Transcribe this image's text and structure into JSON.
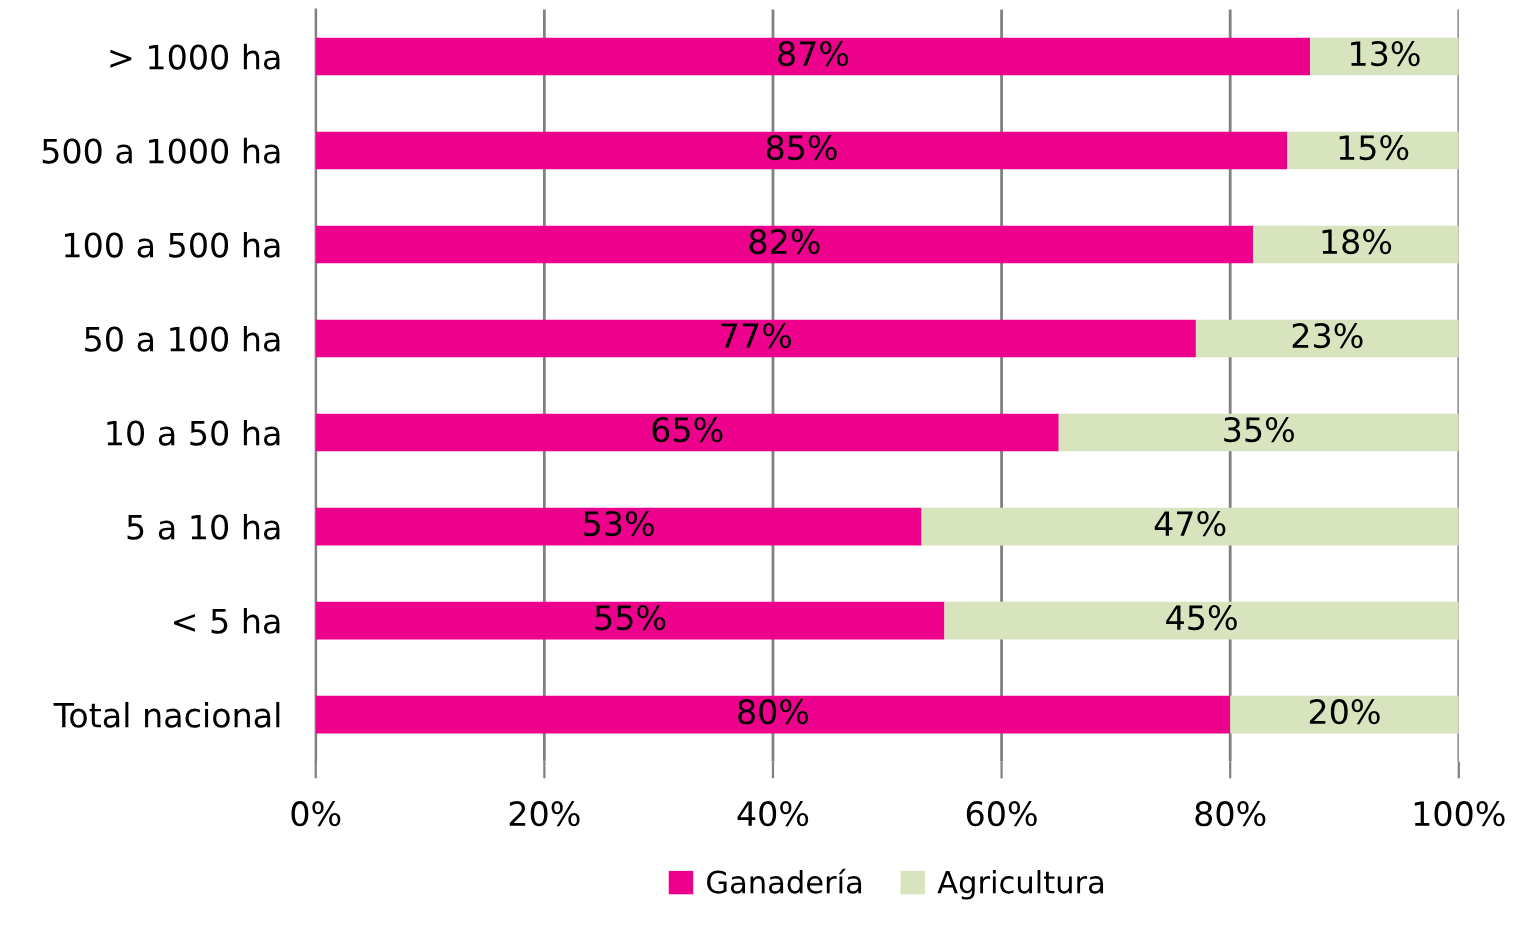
{
  "chart_data": {
    "type": "bar",
    "orientation": "horizontal",
    "stacked": true,
    "categories": [
      "> 1000 ha",
      "500 a 1000 ha",
      "100 a 500 ha",
      "50 a 100 ha",
      "10 a 50 ha",
      "5 a 10 ha",
      "< 5 ha",
      "Total nacional"
    ],
    "series": [
      {
        "name": "Ganadería",
        "color": "#ec008c",
        "values": [
          87,
          85,
          82,
          77,
          65,
          53,
          55,
          80
        ],
        "value_labels": [
          "87%",
          "85%",
          "82%",
          "77%",
          "65%",
          "53%",
          "55%",
          "80%"
        ]
      },
      {
        "name": "Agricultura",
        "color": "#d7e4bd",
        "values": [
          13,
          15,
          18,
          23,
          35,
          47,
          45,
          20
        ],
        "value_labels": [
          "13%",
          "15%",
          "18%",
          "23%",
          "35%",
          "47%",
          "45%",
          "20%"
        ]
      }
    ],
    "xlim": [
      0,
      100
    ],
    "xticks": [
      {
        "value": 0,
        "label": "0%"
      },
      {
        "value": 20,
        "label": "20%"
      },
      {
        "value": 40,
        "label": "40%"
      },
      {
        "value": 60,
        "label": "60%"
      },
      {
        "value": 80,
        "label": "80%"
      },
      {
        "value": 100,
        "label": "100%"
      }
    ],
    "grid": "x",
    "legend": "bottom"
  }
}
